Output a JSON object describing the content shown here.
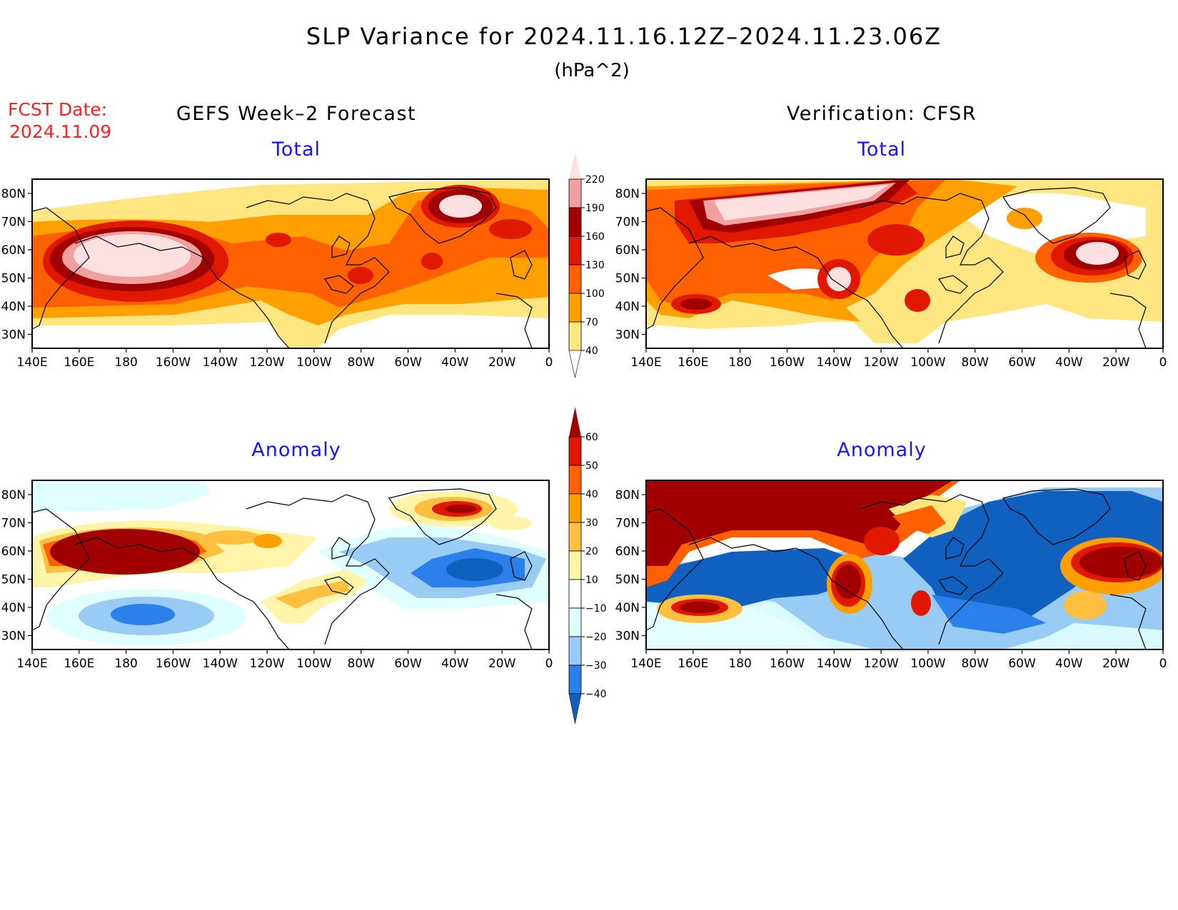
{
  "title": "SLP Variance for 2024.11.16.12Z–2024.11.23.06Z",
  "units": "(hPa^2)",
  "fcst": {
    "label": "FCST Date:",
    "date": "2024.11.09"
  },
  "columns": {
    "left": "GEFS Week–2 Forecast",
    "right": "Verification: CFSR"
  },
  "panels": {
    "top_left": "Total",
    "top_right": "Total",
    "bottom_left": "Anomaly",
    "bottom_right": "Anomaly"
  },
  "chart_data": {
    "type": "heatmap",
    "lon_ticks": [
      "140E",
      "160E",
      "180",
      "160W",
      "140W",
      "120W",
      "100W",
      "80W",
      "60W",
      "40W",
      "20W",
      "0"
    ],
    "lat_ticks": [
      "80N",
      "70N",
      "60N",
      "50N",
      "40N",
      "30N"
    ],
    "total_colorbar": {
      "levels": [
        "40",
        "70",
        "100",
        "130",
        "160",
        "190",
        "220"
      ],
      "colors": [
        "#ffffff",
        "#ffe680",
        "#ffa000",
        "#ff6000",
        "#e01800",
        "#a00000",
        "#f0a0a0",
        "#ffe0e0"
      ]
    },
    "anomaly_colorbar": {
      "levels": [
        "60",
        "50",
        "40",
        "30",
        "20",
        "10",
        "−10",
        "−20",
        "−30",
        "−40"
      ],
      "colors": [
        "#a00000",
        "#e01800",
        "#ff6000",
        "#ffa000",
        "#ffc040",
        "#fff5aa",
        "#ffffff",
        "#e0ffff",
        "#99ccf5",
        "#2a80e8",
        "#1060c0"
      ]
    }
  }
}
